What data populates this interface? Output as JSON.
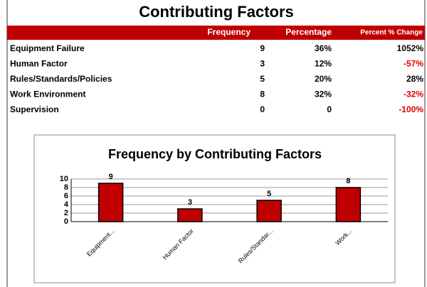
{
  "header": {
    "title": "Contributing Factors"
  },
  "table": {
    "columns": [
      "Frequency",
      "Percentage",
      "Percent % Change"
    ],
    "rows": [
      [
        "Equipment Failure",
        "9",
        "36%",
        "1052%"
      ],
      [
        "Human Factor",
        "3",
        "12%",
        "-57%"
      ],
      [
        "Rules/Standards/Policies",
        "5",
        "20%",
        "28%"
      ],
      [
        "Work Environment",
        "8",
        "32%",
        "-32%"
      ],
      [
        "Supervision",
        "0",
        "0",
        "-100%"
      ]
    ]
  },
  "chart_data": {
    "type": "bar",
    "title": "Frequency by Contributing Factors",
    "categories": [
      "Equipment...",
      "Human Factor",
      "Rules/Standar...",
      "Work..."
    ],
    "values": [
      9,
      3,
      5,
      8
    ],
    "color": "#c00000",
    "ylim": [
      0,
      10
    ],
    "yticks": [
      0,
      2,
      4,
      6,
      8,
      10
    ],
    "grid": true
  }
}
